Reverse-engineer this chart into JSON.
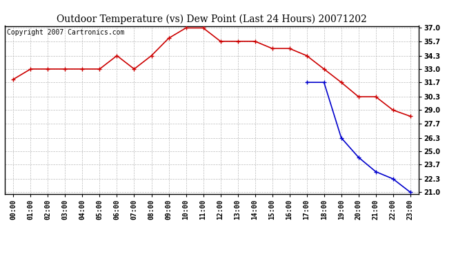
{
  "title": "Outdoor Temperature (vs) Dew Point (Last 24 Hours) 20071202",
  "copyright_text": "Copyright 2007 Cartronics.com",
  "x_labels": [
    "00:00",
    "01:00",
    "02:00",
    "03:00",
    "04:00",
    "05:00",
    "06:00",
    "07:00",
    "08:00",
    "09:00",
    "10:00",
    "11:00",
    "12:00",
    "13:00",
    "14:00",
    "15:00",
    "16:00",
    "17:00",
    "18:00",
    "19:00",
    "20:00",
    "21:00",
    "22:00",
    "23:00"
  ],
  "temp_data": [
    32.0,
    33.0,
    33.0,
    33.0,
    33.0,
    33.0,
    34.3,
    33.0,
    34.3,
    36.0,
    37.0,
    37.0,
    35.7,
    35.7,
    35.7,
    35.0,
    35.0,
    34.3,
    33.0,
    31.7,
    30.3,
    30.3,
    29.0,
    28.4
  ],
  "dew_data": [
    null,
    null,
    null,
    null,
    null,
    null,
    null,
    null,
    null,
    null,
    null,
    null,
    null,
    null,
    null,
    null,
    null,
    31.7,
    31.7,
    26.3,
    24.4,
    23.0,
    22.3,
    21.0
  ],
  "temp_color": "#cc0000",
  "dew_color": "#0000cc",
  "bg_color": "#ffffff",
  "plot_bg_color": "#ffffff",
  "grid_color": "#bbbbbb",
  "ylim_min": 21.0,
  "ylim_max": 37.0,
  "yticks": [
    37.0,
    35.7,
    34.3,
    33.0,
    31.7,
    30.3,
    29.0,
    27.7,
    26.3,
    25.0,
    23.7,
    22.3,
    21.0
  ],
  "marker": "+",
  "marker_size": 5,
  "marker_edge_width": 1.0,
  "line_width": 1.2,
  "title_fontsize": 10,
  "tick_fontsize": 7,
  "copyright_fontsize": 7
}
